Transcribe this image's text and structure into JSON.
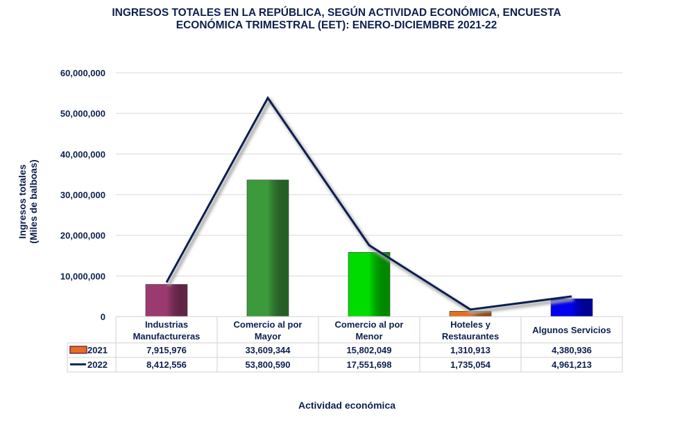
{
  "chart_data": {
    "type": "bar",
    "title": "INGRESOS TOTALES EN LA REPÚBLICA, SEGÚN ACTIVIDAD ECONÓMICA, ENCUESTA ECONÓMICA TRIMESTRAL (EET): ENERO-DICIEMBRE 2021-22",
    "title_lines": [
      "INGRESOS TOTALES EN LA REPÚBLICA, SEGÚN ACTIVIDAD ECONÓMICA, ENCUESTA",
      "ECONÓMICA TRIMESTRAL (EET): ENERO-DICIEMBRE 2021-22"
    ],
    "xlabel": "Actividad económica",
    "ylabel_lines": [
      "Ingresos totales",
      "(Miles de balboas)"
    ],
    "ylim": [
      0,
      60000000
    ],
    "yticks": [
      0,
      10000000,
      20000000,
      30000000,
      40000000,
      50000000,
      60000000
    ],
    "ytick_labels": [
      "0",
      "10,000,000",
      "20,000,000",
      "30,000,000",
      "40,000,000",
      "50,000,000",
      "60,000,000"
    ],
    "grid": true,
    "categories": [
      [
        "Industrias",
        "Manufactureras"
      ],
      [
        "Comercio al por",
        "Mayor"
      ],
      [
        "Comercio al por",
        "Menor"
      ],
      [
        "Hoteles y",
        "Restaurantes"
      ],
      [
        "Algunos Servicios"
      ]
    ],
    "series": [
      {
        "name": "2021",
        "kind": "bar",
        "values": [
          7915976,
          33609344,
          15802049,
          1310913,
          4380936
        ],
        "labels": [
          "7,915,976",
          "33,609,344",
          "15,802,049",
          "1,310,913",
          "4,380,936"
        ],
        "colors": [
          "#9b3a70",
          "#3c9a3c",
          "#00dc00",
          "#e4701e",
          "#0000ee"
        ]
      },
      {
        "name": "2022",
        "kind": "line",
        "values": [
          8412556,
          53800590,
          17551698,
          1735054,
          4961213
        ],
        "labels": [
          "8,412,556",
          "53,800,590",
          "17,551,698",
          "1,735,054",
          "4,961,213"
        ],
        "color": "#0d1f4f"
      }
    ],
    "legend": "data-table"
  }
}
